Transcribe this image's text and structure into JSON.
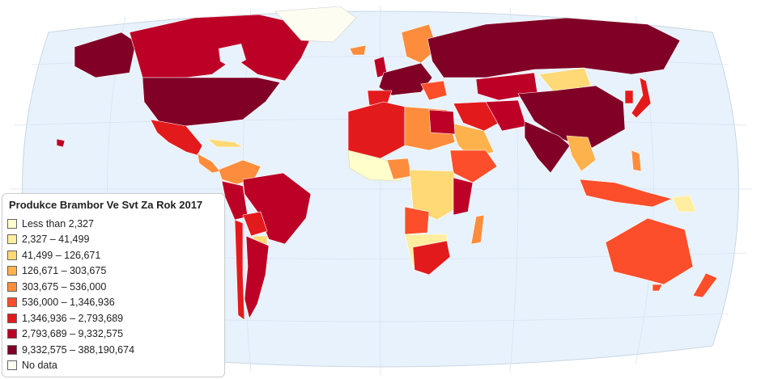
{
  "legend": {
    "title": "Produkce Brambor Ve Svt Za Rok 2017",
    "items": [
      {
        "label": "Less than 2,327",
        "color": "#ffffcc"
      },
      {
        "label": "2,327 – 41,499",
        "color": "#ffeda0"
      },
      {
        "label": "41,499 – 126,671",
        "color": "#fed976"
      },
      {
        "label": "126,671 – 303,675",
        "color": "#feb24c"
      },
      {
        "label": "303,675 – 536,000",
        "color": "#fd8d3c"
      },
      {
        "label": "536,000 – 1,346,936",
        "color": "#fc4e2a"
      },
      {
        "label": "1,346,936 – 2,793,689",
        "color": "#e31a1c"
      },
      {
        "label": "2,793,689 – 9,332,575",
        "color": "#bd0026"
      },
      {
        "label": "9,332,575 – 388,190,674",
        "color": "#800026"
      },
      {
        "label": "No data",
        "color": "#fdfdf2"
      }
    ]
  },
  "colors": {
    "ocean": "#e8f2fc",
    "graticule": "#d5e3f1",
    "outline": "#c9d6e3"
  }
}
